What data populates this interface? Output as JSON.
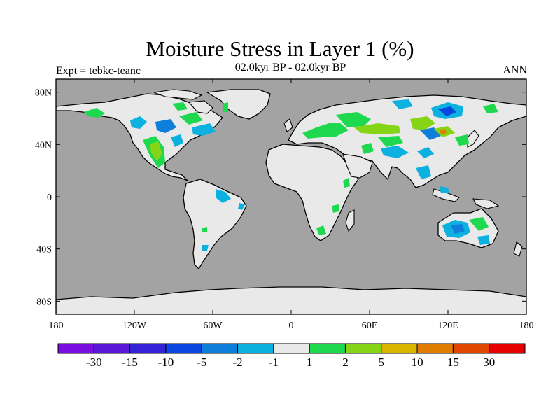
{
  "title": "Moisture Stress in Layer 1 (%)",
  "subtitle": "02.0kyr BP - 02.0kyr BP",
  "experiment": "Expt = tebkc-teanc",
  "season": "ANN",
  "colors": {
    "ocean": "#a3a3a3",
    "land": "#e9e9e9",
    "coast": "#000000"
  },
  "map": {
    "lat_ticks": [
      {
        "value": 80,
        "label": "80N"
      },
      {
        "value": 40,
        "label": "40N"
      },
      {
        "value": 0,
        "label": "0"
      },
      {
        "value": -40,
        "label": "40S"
      },
      {
        "value": -80,
        "label": "80S"
      }
    ],
    "lon_ticks": [
      {
        "value": -180,
        "label": "180"
      },
      {
        "value": -120,
        "label": "120W"
      },
      {
        "value": -60,
        "label": "60W"
      },
      {
        "value": 0,
        "label": "0"
      },
      {
        "value": 60,
        "label": "60E"
      },
      {
        "value": 120,
        "label": "120E"
      },
      {
        "value": 180,
        "label": "180"
      }
    ]
  },
  "colorbar": {
    "colors": [
      "#7a0ee0",
      "#5a17d8",
      "#3622d6",
      "#0b46e0",
      "#0d7ed9",
      "#0cb1df",
      "#e9e9e9",
      "#1ed84e",
      "#85d516",
      "#d9b500",
      "#e07c00",
      "#e04600",
      "#e60000"
    ],
    "labels": [
      "-30",
      "-15",
      "-10",
      "-5",
      "-2",
      "-1",
      "1",
      "2",
      "5",
      "10",
      "15",
      "30"
    ]
  }
}
